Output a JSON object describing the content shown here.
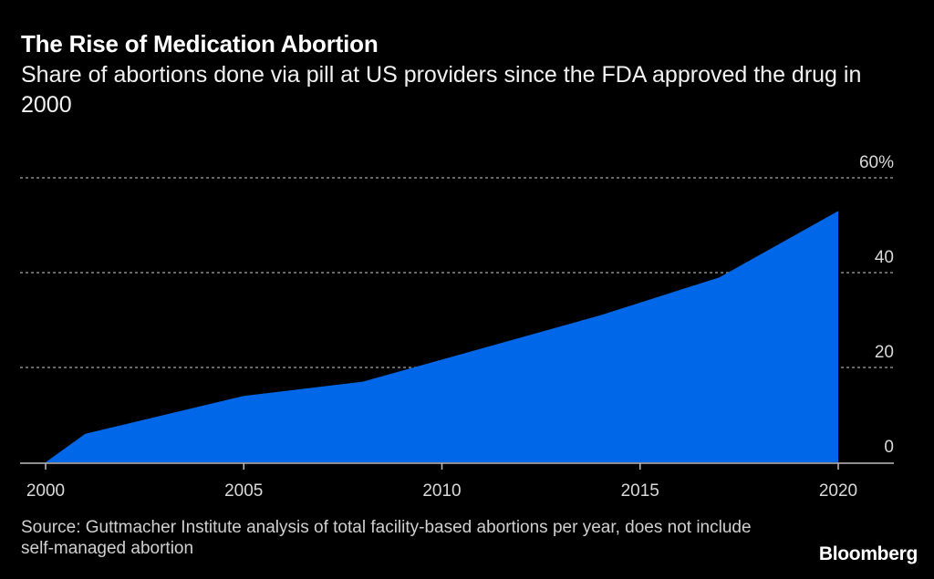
{
  "header": {
    "title": "The Rise of Medication Abortion",
    "subtitle": "Share of abortions done via pill at US providers since the FDA approved the drug in 2000"
  },
  "footer": {
    "source": "Source: Guttmacher Institute analysis of total facility-based abortions per year, does not include self-managed abortion",
    "logo": "Bloomberg"
  },
  "colors": {
    "background": "#000000",
    "area_fill": "#0068E8",
    "gridline": "#8a8a8a",
    "axis": "#bdbdbd",
    "tick_text": "#d9d9d9"
  },
  "chart_data": {
    "type": "area",
    "title": "The Rise of Medication Abortion",
    "subtitle": "Share of abortions done via pill at US providers since the FDA approved the drug in 2000",
    "xlabel": "",
    "ylabel": "",
    "x": [
      2000,
      2001,
      2005,
      2008,
      2011,
      2014,
      2017,
      2020
    ],
    "series": [
      {
        "name": "Share of abortions via pill (%)",
        "values": [
          0,
          6,
          14,
          17,
          24,
          31,
          39,
          53
        ]
      }
    ],
    "xlim": [
      1999,
      2021.6
    ],
    "ylim": [
      0,
      60
    ],
    "x_ticks": [
      2000,
      2005,
      2010,
      2015,
      2020
    ],
    "x_tick_labels": [
      "2000",
      "2005",
      "2010",
      "2015",
      "2020"
    ],
    "y_ticks": [
      0,
      20,
      40,
      60
    ],
    "y_tick_labels": [
      "0",
      "20",
      "40",
      "60%"
    ],
    "y_axis_side": "right",
    "grid": true,
    "grid_style": "dotted-horizontal",
    "legend": "none"
  }
}
